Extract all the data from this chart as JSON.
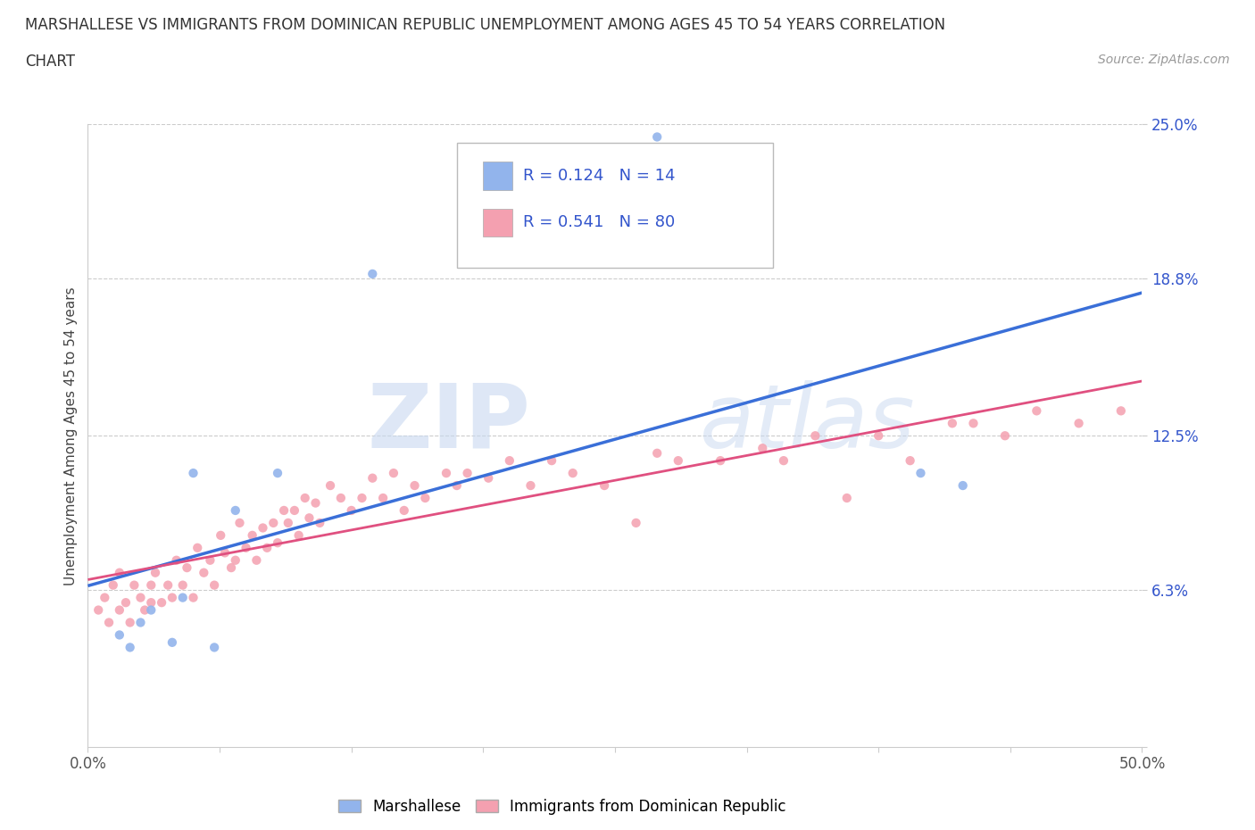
{
  "title_line1": "MARSHALLESE VS IMMIGRANTS FROM DOMINICAN REPUBLIC UNEMPLOYMENT AMONG AGES 45 TO 54 YEARS CORRELATION",
  "title_line2": "CHART",
  "source_text": "Source: ZipAtlas.com",
  "ylabel": "Unemployment Among Ages 45 to 54 years",
  "xlim": [
    0.0,
    0.5
  ],
  "ylim": [
    0.0,
    0.25
  ],
  "yticks": [
    0.0,
    0.063,
    0.125,
    0.188,
    0.25
  ],
  "ytick_labels": [
    "",
    "6.3%",
    "12.5%",
    "18.8%",
    "25.0%"
  ],
  "xticks": [
    0.0,
    0.0625,
    0.125,
    0.1875,
    0.25,
    0.3125,
    0.375,
    0.4375,
    0.5
  ],
  "xtick_labels": [
    "0.0%",
    "",
    "",
    "",
    "",
    "",
    "",
    "",
    "50.0%"
  ],
  "blue_color": "#92b4ec",
  "pink_color": "#f4a0b0",
  "blue_line_color": "#3a6fd8",
  "pink_line_color": "#e05080",
  "r_blue": 0.124,
  "n_blue": 14,
  "r_pink": 0.541,
  "n_pink": 80,
  "legend_text_color": "#3355cc",
  "watermark_zip": "ZIP",
  "watermark_atlas": "atlas",
  "blue_scatter_x": [
    0.015,
    0.02,
    0.025,
    0.03,
    0.04,
    0.045,
    0.05,
    0.06,
    0.07,
    0.09,
    0.135,
    0.27,
    0.395,
    0.415
  ],
  "blue_scatter_y": [
    0.045,
    0.04,
    0.05,
    0.055,
    0.042,
    0.06,
    0.11,
    0.04,
    0.095,
    0.11,
    0.19,
    0.245,
    0.11,
    0.105
  ],
  "pink_scatter_x": [
    0.005,
    0.008,
    0.01,
    0.012,
    0.015,
    0.015,
    0.018,
    0.02,
    0.022,
    0.025,
    0.027,
    0.03,
    0.03,
    0.032,
    0.035,
    0.038,
    0.04,
    0.042,
    0.045,
    0.047,
    0.05,
    0.052,
    0.055,
    0.058,
    0.06,
    0.063,
    0.065,
    0.068,
    0.07,
    0.072,
    0.075,
    0.078,
    0.08,
    0.083,
    0.085,
    0.088,
    0.09,
    0.093,
    0.095,
    0.098,
    0.1,
    0.103,
    0.105,
    0.108,
    0.11,
    0.115,
    0.12,
    0.125,
    0.13,
    0.135,
    0.14,
    0.145,
    0.15,
    0.155,
    0.16,
    0.17,
    0.175,
    0.18,
    0.19,
    0.2,
    0.21,
    0.22,
    0.23,
    0.245,
    0.26,
    0.27,
    0.28,
    0.3,
    0.32,
    0.33,
    0.345,
    0.36,
    0.375,
    0.39,
    0.41,
    0.42,
    0.435,
    0.45,
    0.47,
    0.49
  ],
  "pink_scatter_y": [
    0.055,
    0.06,
    0.05,
    0.065,
    0.055,
    0.07,
    0.058,
    0.05,
    0.065,
    0.06,
    0.055,
    0.058,
    0.065,
    0.07,
    0.058,
    0.065,
    0.06,
    0.075,
    0.065,
    0.072,
    0.06,
    0.08,
    0.07,
    0.075,
    0.065,
    0.085,
    0.078,
    0.072,
    0.075,
    0.09,
    0.08,
    0.085,
    0.075,
    0.088,
    0.08,
    0.09,
    0.082,
    0.095,
    0.09,
    0.095,
    0.085,
    0.1,
    0.092,
    0.098,
    0.09,
    0.105,
    0.1,
    0.095,
    0.1,
    0.108,
    0.1,
    0.11,
    0.095,
    0.105,
    0.1,
    0.11,
    0.105,
    0.11,
    0.108,
    0.115,
    0.105,
    0.115,
    0.11,
    0.105,
    0.09,
    0.118,
    0.115,
    0.115,
    0.12,
    0.115,
    0.125,
    0.1,
    0.125,
    0.115,
    0.13,
    0.13,
    0.125,
    0.135,
    0.13,
    0.135
  ],
  "grid_color": "#cccccc",
  "spine_color": "#cccccc"
}
